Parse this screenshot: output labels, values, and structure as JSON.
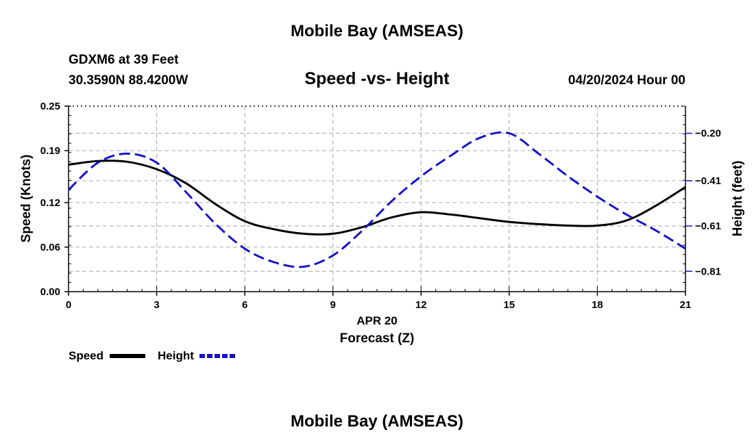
{
  "header": {
    "title": "Mobile Bay (AMSEAS)",
    "station": "GDXM6 at 39 Feet",
    "location": "30.3590N  88.4200W",
    "chart_title": "Speed -vs- Height",
    "datetime": "04/20/2024 Hour 00"
  },
  "footer": {
    "title": "Mobile Bay (AMSEAS)"
  },
  "colors": {
    "speed": "#000000",
    "height": "#1414c8",
    "grid": "#b4b4b4"
  },
  "chart_data": {
    "type": "line",
    "title": "Speed -vs- Height",
    "xlabel": "Forecast (Z)",
    "xsublabel": "APR 20",
    "ylabel": "Speed (Knots)",
    "y2label": "Height (feet)",
    "x_ticks": [
      0,
      3,
      6,
      9,
      12,
      15,
      18,
      21
    ],
    "x_tick_labels": [
      "0",
      "3",
      "6",
      "9",
      "12",
      "15",
      "18",
      "21"
    ],
    "xlim": [
      0,
      21
    ],
    "y_ticks": [
      0.0,
      0.06,
      0.12,
      0.19,
      0.25
    ],
    "y_tick_labels": [
      "0.00",
      "0.06",
      "0.12",
      "0.19",
      "0.25"
    ],
    "ylim": [
      0,
      0.25
    ],
    "y2_ticks": [
      -0.2,
      -0.41,
      -0.61,
      -0.81
    ],
    "y2_tick_labels": [
      "−0.20",
      "−0.41",
      "−0.61",
      "−0.81"
    ],
    "y2lim": [
      -0.9,
      -0.08
    ],
    "legend": [
      {
        "name": "Speed",
        "style": "solid"
      },
      {
        "name": "Height",
        "style": "dashed"
      }
    ],
    "series": [
      {
        "name": "Speed",
        "axis": "left",
        "style": "solid",
        "x": [
          0,
          1,
          2,
          3,
          4,
          5,
          6,
          7,
          8,
          9,
          10,
          11,
          12,
          13,
          14,
          15,
          16,
          17,
          18,
          19,
          20,
          21
        ],
        "y": [
          0.171,
          0.176,
          0.175,
          0.165,
          0.146,
          0.118,
          0.095,
          0.084,
          0.078,
          0.078,
          0.087,
          0.1,
          0.107,
          0.104,
          0.099,
          0.094,
          0.091,
          0.089,
          0.089,
          0.096,
          0.116,
          0.141
        ]
      },
      {
        "name": "Height",
        "axis": "right",
        "style": "dashed",
        "x": [
          0,
          1,
          2,
          3,
          4,
          5,
          6,
          7,
          8,
          9,
          10,
          11,
          12,
          13,
          14,
          15,
          16,
          17,
          18,
          19,
          20,
          21
        ],
        "y": [
          -0.45,
          -0.33,
          -0.29,
          -0.33,
          -0.46,
          -0.6,
          -0.71,
          -0.77,
          -0.79,
          -0.74,
          -0.63,
          -0.5,
          -0.39,
          -0.3,
          -0.22,
          -0.2,
          -0.29,
          -0.39,
          -0.48,
          -0.56,
          -0.63,
          -0.71
        ]
      }
    ]
  }
}
